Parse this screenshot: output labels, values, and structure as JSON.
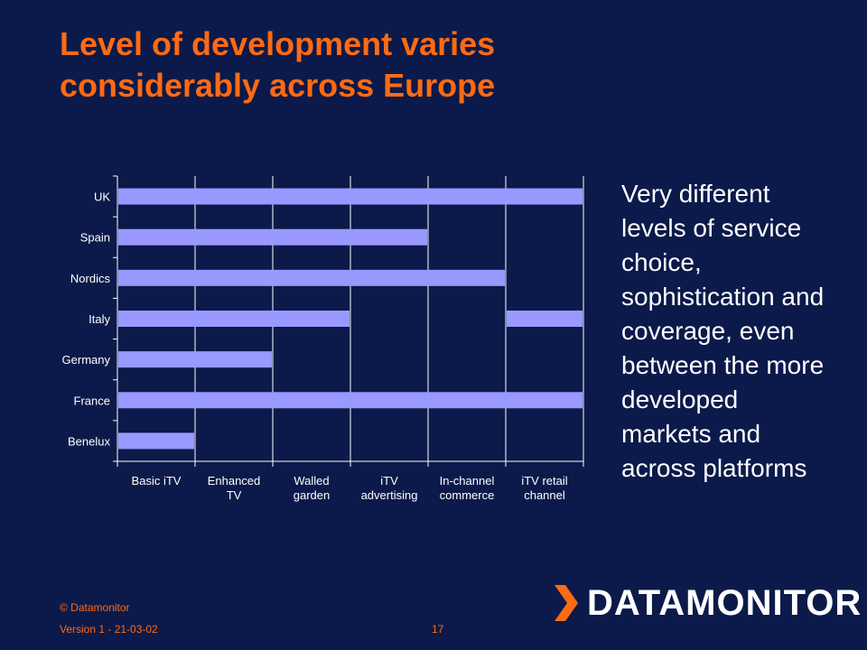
{
  "slide": {
    "title_lines": [
      "Level of development varies",
      "considerably across Europe"
    ],
    "side_text_lines": [
      "Very different",
      "levels of service",
      "choice,",
      "sophistication and",
      "coverage, even",
      "between the more",
      "developed",
      "markets and",
      "across platforms"
    ]
  },
  "footer": {
    "copyright": "© Datamonitor",
    "version": "Version 1 - 21-03-02",
    "page": "17",
    "logo_text": "DATAMONITOR"
  },
  "colors": {
    "background": "#0b1a4a",
    "title": "#ff6a14",
    "bar": "#9999ff",
    "grid": "#ffffff",
    "text": "#ffffff",
    "footer": "#ff6a14"
  },
  "chart_data": {
    "type": "bar",
    "orientation": "horizontal",
    "title": "",
    "xlabel": "",
    "ylabel": "",
    "categories": [
      "UK",
      "Spain",
      "Nordics",
      "Italy",
      "Germany",
      "France",
      "Benelux"
    ],
    "x_ticks": [
      [
        "Basic iTV"
      ],
      [
        "Enhanced",
        "TV"
      ],
      [
        "Walled",
        "garden"
      ],
      [
        "iTV",
        "advertising"
      ],
      [
        "In-channel",
        "commerce"
      ],
      [
        "iTV retail",
        "channel"
      ]
    ],
    "bars": [
      {
        "category": "UK",
        "segments": [
          [
            0,
            6
          ]
        ]
      },
      {
        "category": "Spain",
        "segments": [
          [
            0,
            4
          ]
        ]
      },
      {
        "category": "Nordics",
        "segments": [
          [
            0,
            5
          ]
        ]
      },
      {
        "category": "Italy",
        "segments": [
          [
            0,
            3
          ],
          [
            5,
            6
          ]
        ]
      },
      {
        "category": "Germany",
        "segments": [
          [
            0,
            2
          ]
        ]
      },
      {
        "category": "France",
        "segments": [
          [
            0,
            6
          ]
        ]
      },
      {
        "category": "Benelux",
        "segments": [
          [
            0,
            1
          ]
        ]
      }
    ],
    "xlim": [
      0,
      6
    ],
    "grid": true,
    "legend": "none"
  }
}
